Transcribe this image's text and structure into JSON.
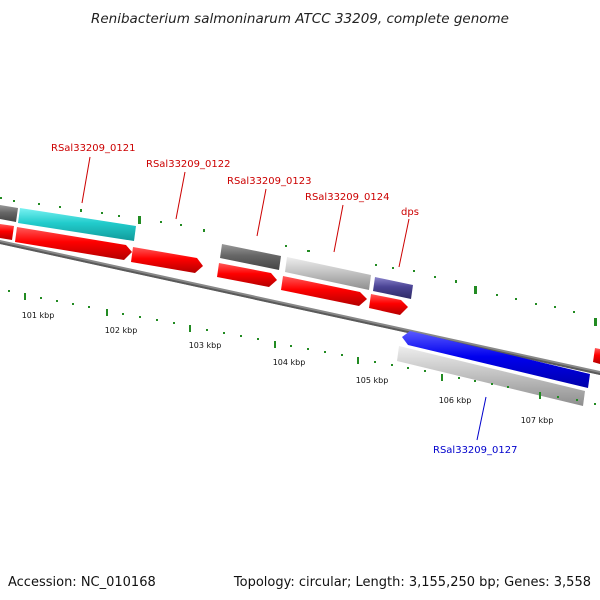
{
  "title": "Renibacterium salmoninarum ATCC 33209, complete genome",
  "accession": "Accession: NC_010168",
  "topology": "Topology: circular; Length: 3,155,250 bp; Genes: 3,558",
  "colors": {
    "forward_label": "#cc0000",
    "reverse_label": "#0000cc",
    "cds": "#ff0000",
    "tick": "#228b22",
    "backbone": "#888888"
  },
  "gene_labels": [
    {
      "id": "rsal-0121",
      "text": "RSal33209_0121",
      "strand": "forward"
    },
    {
      "id": "rsal-0122",
      "text": "RSal33209_0122",
      "strand": "forward"
    },
    {
      "id": "rsal-0123",
      "text": "RSal33209_0123",
      "strand": "forward"
    },
    {
      "id": "rsal-0124",
      "text": "RSal33209_0124",
      "strand": "forward"
    },
    {
      "id": "dps",
      "text": "dps",
      "strand": "forward"
    },
    {
      "id": "rsal-0127",
      "text": "RSal33209_0127",
      "strand": "reverse"
    }
  ],
  "ruler_labels": [
    "101 kbp",
    "102 kbp",
    "103 kbp",
    "104 kbp",
    "105 kbp",
    "106 kbp",
    "107 kbp"
  ]
}
